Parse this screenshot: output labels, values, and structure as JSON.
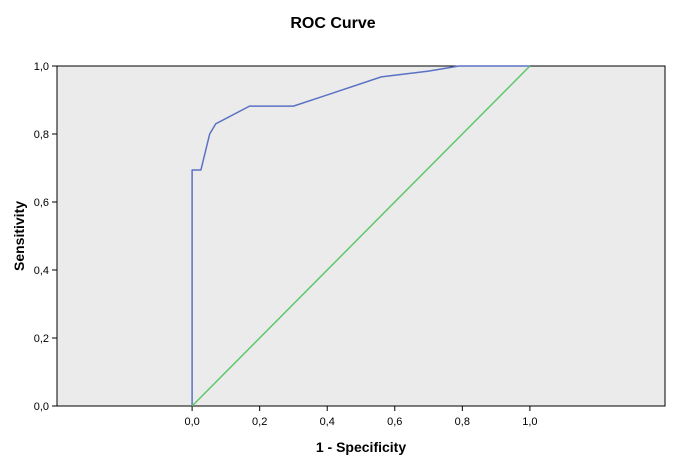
{
  "chart_data": {
    "type": "line",
    "title": "ROC Curve",
    "xlabel": "1 - Specificity",
    "ylabel": "Sensitivity",
    "xlim": [
      -0.4,
      1.4
    ],
    "ylim": [
      0,
      1
    ],
    "x_ticks": [
      "0,0",
      "0,2",
      "0,4",
      "0,6",
      "0,8",
      "1,0"
    ],
    "y_ticks": [
      "0,0",
      "0,2",
      "0,4",
      "0,6",
      "0,8",
      "1,0"
    ],
    "grid": false,
    "background_color": "#ebebeb",
    "series": [
      {
        "color": "#5b72c4",
        "points": [
          [
            0.0,
            0.0
          ],
          [
            0.0,
            0.694
          ],
          [
            0.026,
            0.694
          ],
          [
            0.052,
            0.8
          ],
          [
            0.07,
            0.83
          ],
          [
            0.17,
            0.882
          ],
          [
            0.3,
            0.882
          ],
          [
            0.4,
            0.915
          ],
          [
            0.56,
            0.968
          ],
          [
            0.7,
            0.985
          ],
          [
            0.79,
            1.0
          ],
          [
            1.0,
            1.0
          ]
        ]
      },
      {
        "color": "#5fc76a",
        "points": [
          [
            0.0,
            0.0
          ],
          [
            1.0,
            1.0
          ]
        ]
      }
    ]
  }
}
